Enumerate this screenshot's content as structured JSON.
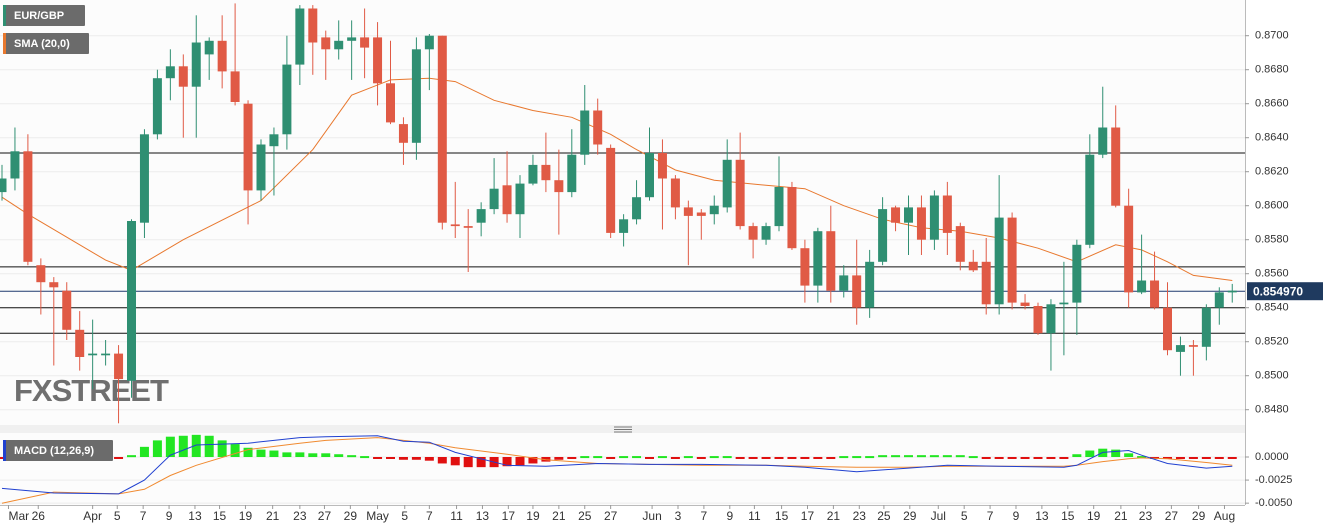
{
  "chart_data": [
    {
      "type": "candlestick",
      "symbol": "EUR/GBP",
      "up_color": "#2f8f72",
      "down_color": "#e05a45",
      "open": [
        0.8608,
        0.8616,
        0.8632,
        0.8565,
        0.8555,
        0.855,
        0.8527,
        0.8512,
        0.8512,
        0.8513,
        0.8497,
        0.859,
        0.8642,
        0.8675,
        0.8682,
        0.867,
        0.8689,
        0.8697,
        0.8679,
        0.866,
        0.8609,
        0.8635,
        0.8642,
        0.8683,
        0.8716,
        0.8699,
        0.8692,
        0.8697,
        0.8699,
        0.8699,
        0.8672,
        0.8648,
        0.8637,
        0.8692,
        0.87,
        0.8589,
        0.8588,
        0.859,
        0.8598,
        0.8612,
        0.8595,
        0.8613,
        0.8624,
        0.8615,
        0.8608,
        0.863,
        0.8656,
        0.8634,
        0.8584,
        0.8592,
        0.8605,
        0.8631,
        0.8616,
        0.8599,
        0.8596,
        0.8595,
        0.8599,
        0.8627,
        0.8588,
        0.858,
        0.8588,
        0.8611,
        0.8575,
        0.8553,
        0.8585,
        0.855,
        0.8559,
        0.854,
        0.8567,
        0.8599,
        0.859,
        0.8599,
        0.858,
        0.8606,
        0.8588,
        0.8567,
        0.8567,
        0.8542,
        0.8593,
        0.8543,
        0.8541,
        0.8525,
        0.8542,
        0.8543,
        0.8577,
        0.863,
        0.8646,
        0.86,
        0.8549,
        0.8556,
        0.854,
        0.8514,
        0.8518,
        0.8517,
        0.854,
        0.8549
      ],
      "high": [
        0.8624,
        0.8646,
        0.8642,
        0.8569,
        0.8558,
        0.8555,
        0.8538,
        0.8533,
        0.8521,
        0.8518,
        0.8592,
        0.8645,
        0.868,
        0.8692,
        0.8689,
        0.8712,
        0.8699,
        0.8712,
        0.8719,
        0.8662,
        0.8639,
        0.8646,
        0.87,
        0.8718,
        0.8718,
        0.8703,
        0.8709,
        0.8709,
        0.8716,
        0.8708,
        0.8697,
        0.8652,
        0.8699,
        0.8701,
        0.87,
        0.8614,
        0.8598,
        0.8602,
        0.8628,
        0.8632,
        0.8618,
        0.863,
        0.8643,
        0.8633,
        0.8645,
        0.8671,
        0.8663,
        0.8636,
        0.8595,
        0.8615,
        0.8646,
        0.8639,
        0.8618,
        0.8603,
        0.8598,
        0.8606,
        0.8639,
        0.8643,
        0.859,
        0.859,
        0.8629,
        0.8614,
        0.858,
        0.8587,
        0.86,
        0.8565,
        0.858,
        0.8574,
        0.8605,
        0.86,
        0.8606,
        0.8606,
        0.8609,
        0.8614,
        0.859,
        0.8574,
        0.8581,
        0.8618,
        0.8596,
        0.8548,
        0.8543,
        0.8545,
        0.8567,
        0.858,
        0.8642,
        0.867,
        0.8659,
        0.861,
        0.8583,
        0.8573,
        0.8555,
        0.8523,
        0.8521,
        0.8542,
        0.8552,
        0.8554
      ],
      "low": [
        0.8603,
        0.8609,
        0.8565,
        0.8536,
        0.8506,
        0.8521,
        0.8503,
        0.8492,
        0.8506,
        0.8472,
        0.8487,
        0.8581,
        0.8639,
        0.8662,
        0.864,
        0.864,
        0.8674,
        0.8669,
        0.8659,
        0.8589,
        0.8603,
        0.8606,
        0.8633,
        0.8671,
        0.8677,
        0.8674,
        0.8686,
        0.8674,
        0.8675,
        0.8659,
        0.8648,
        0.8624,
        0.8627,
        0.8668,
        0.8586,
        0.8581,
        0.8561,
        0.8582,
        0.8595,
        0.859,
        0.8581,
        0.8612,
        0.8608,
        0.8583,
        0.8605,
        0.8624,
        0.863,
        0.8581,
        0.8576,
        0.8589,
        0.8603,
        0.8586,
        0.8592,
        0.8565,
        0.858,
        0.8589,
        0.8596,
        0.8586,
        0.8569,
        0.8577,
        0.8585,
        0.8574,
        0.8543,
        0.8543,
        0.8543,
        0.8546,
        0.853,
        0.8534,
        0.8565,
        0.8585,
        0.8571,
        0.8571,
        0.8574,
        0.8571,
        0.8562,
        0.8561,
        0.8536,
        0.8536,
        0.8539,
        0.8539,
        0.8524,
        0.8503,
        0.8512,
        0.8524,
        0.8575,
        0.8628,
        0.8599,
        0.854,
        0.8548,
        0.8539,
        0.8512,
        0.85,
        0.85,
        0.8509,
        0.853,
        0.8543
      ],
      "close": [
        0.8616,
        0.8632,
        0.8567,
        0.8555,
        0.8552,
        0.8527,
        0.8511,
        0.8513,
        0.8513,
        0.8498,
        0.8591,
        0.8642,
        0.8675,
        0.8682,
        0.867,
        0.8696,
        0.8697,
        0.8679,
        0.8661,
        0.8609,
        0.8636,
        0.8642,
        0.8683,
        0.8716,
        0.8696,
        0.8692,
        0.8697,
        0.8699,
        0.8693,
        0.8672,
        0.8649,
        0.8637,
        0.8692,
        0.87,
        0.859,
        0.8588,
        0.8587,
        0.8598,
        0.861,
        0.8595,
        0.8613,
        0.8624,
        0.8615,
        0.8608,
        0.863,
        0.8656,
        0.8636,
        0.8584,
        0.8592,
        0.8605,
        0.8631,
        0.8616,
        0.8599,
        0.8594,
        0.8594,
        0.86,
        0.8627,
        0.8588,
        0.858,
        0.8588,
        0.8611,
        0.8575,
        0.8553,
        0.8585,
        0.855,
        0.8559,
        0.854,
        0.8567,
        0.8598,
        0.859,
        0.8599,
        0.858,
        0.8606,
        0.8584,
        0.8567,
        0.8562,
        0.8542,
        0.8593,
        0.8543,
        0.8541,
        0.8525,
        0.8542,
        0.8543,
        0.8577,
        0.863,
        0.8646,
        0.86,
        0.8549,
        0.8556,
        0.854,
        0.8515,
        0.8518,
        0.8517,
        0.854,
        0.8549,
        0.855
      ],
      "sma": {
        "name": "SMA (20,0)",
        "color": "#e8782e",
        "x": [
          0,
          2,
          8,
          10,
          14,
          20,
          24,
          27,
          30,
          33,
          35,
          38,
          41,
          44,
          47,
          49,
          52,
          55,
          59,
          62,
          65,
          68,
          71,
          74,
          77,
          80,
          83,
          86,
          88,
          90,
          92,
          95
        ],
        "values": [
          0.8605,
          0.8595,
          0.8568,
          0.8562,
          0.858,
          0.8603,
          0.8633,
          0.8665,
          0.8674,
          0.8675,
          0.8673,
          0.8662,
          0.8656,
          0.8652,
          0.8642,
          0.8633,
          0.8621,
          0.8615,
          0.8612,
          0.861,
          0.86,
          0.8592,
          0.8587,
          0.8585,
          0.8581,
          0.8575,
          0.8567,
          0.8577,
          0.8574,
          0.8567,
          0.8559,
          0.8556
        ]
      },
      "levels": [
        0.8631,
        0.8564,
        0.854,
        0.8525
      ],
      "last_price": {
        "value": 0.85497,
        "label": "0.854970"
      },
      "watermark": "FXSTREET",
      "ylim": [
        0.8471,
        0.8721
      ],
      "yticks": [
        {
          "value": 0.87,
          "label": "0.8700"
        },
        {
          "value": 0.868,
          "label": "0.8680"
        },
        {
          "value": 0.866,
          "label": "0.8660"
        },
        {
          "value": 0.864,
          "label": "0.8640"
        },
        {
          "value": 0.862,
          "label": "0.8620"
        },
        {
          "value": 0.86,
          "label": "0.8600"
        },
        {
          "value": 0.858,
          "label": "0.8580"
        },
        {
          "value": 0.856,
          "label": "0.8560"
        },
        {
          "value": 0.854,
          "label": "0.8540"
        },
        {
          "value": 0.852,
          "label": "0.8520"
        },
        {
          "value": 0.85,
          "label": "0.8500"
        },
        {
          "value": 0.848,
          "label": "0.8480"
        }
      ],
      "xticks": [
        {
          "value": 0.5,
          "label": "Mar"
        },
        {
          "value": 2.8,
          "label": "26"
        },
        {
          "value": 7,
          "label": "Apr"
        },
        {
          "value": 8.9,
          "label": "5"
        },
        {
          "value": 10.9,
          "label": "7"
        },
        {
          "value": 12.9,
          "label": "9"
        },
        {
          "value": 14.9,
          "label": "13"
        },
        {
          "value": 16.8,
          "label": "15"
        },
        {
          "value": 18.8,
          "label": "19"
        },
        {
          "value": 20.9,
          "label": "21"
        },
        {
          "value": 23,
          "label": "23"
        },
        {
          "value": 24.9,
          "label": "27"
        },
        {
          "value": 26.9,
          "label": "29"
        },
        {
          "value": 29,
          "label": "May"
        },
        {
          "value": 31.1,
          "label": "5"
        },
        {
          "value": 33,
          "label": "7"
        },
        {
          "value": 35.1,
          "label": "11"
        },
        {
          "value": 37.1,
          "label": "13"
        },
        {
          "value": 39.1,
          "label": "17"
        },
        {
          "value": 41,
          "label": "19"
        },
        {
          "value": 43,
          "label": "21"
        },
        {
          "value": 45,
          "label": "25"
        },
        {
          "value": 47,
          "label": "27"
        },
        {
          "value": 50.2,
          "label": "Jun"
        },
        {
          "value": 52.2,
          "label": "3"
        },
        {
          "value": 54.2,
          "label": "7"
        },
        {
          "value": 56.2,
          "label": "9"
        },
        {
          "value": 58.1,
          "label": "11"
        },
        {
          "value": 60.2,
          "label": "15"
        },
        {
          "value": 62.2,
          "label": "17"
        },
        {
          "value": 64.2,
          "label": "21"
        },
        {
          "value": 66.2,
          "label": "23"
        },
        {
          "value": 68.1,
          "label": "25"
        },
        {
          "value": 70.1,
          "label": "29"
        },
        {
          "value": 72.3,
          "label": "Jul"
        },
        {
          "value": 74.3,
          "label": "5"
        },
        {
          "value": 76.3,
          "label": "7"
        },
        {
          "value": 78.3,
          "label": "9"
        },
        {
          "value": 80.3,
          "label": "13"
        },
        {
          "value": 82.3,
          "label": "15"
        },
        {
          "value": 84.3,
          "label": "19"
        },
        {
          "value": 86.4,
          "label": "21"
        },
        {
          "value": 88.3,
          "label": "23"
        },
        {
          "value": 90.3,
          "label": "27"
        },
        {
          "value": 92.4,
          "label": "29"
        },
        {
          "value": 94.4,
          "label": "Aug"
        }
      ],
      "grid": true
    },
    {
      "type": "macd",
      "name": "MACD (12,26,9)",
      "up_color": "#22e622",
      "down_color": "#e01010",
      "histogram": [
        -0.0002,
        -0.0002,
        -0.0002,
        -0.0002,
        -0.0002,
        -0.0002,
        -0.0002,
        -0.0002,
        -0.0002,
        -0.0001,
        0.0002,
        0.0011,
        0.0018,
        0.0022,
        0.0023,
        0.0024,
        0.0023,
        0.0018,
        0.0014,
        0.001,
        0.0008,
        0.0007,
        0.0005,
        0.0005,
        0.0004,
        0.0004,
        0.0003,
        0.0002,
        0.0001,
        -0.0001,
        -0.0002,
        -0.0003,
        -0.0003,
        -0.0004,
        -0.0007,
        -0.0009,
        -0.0011,
        -0.0011,
        -0.0011,
        -0.001,
        -0.0009,
        -0.0007,
        -0.0005,
        -0.0003,
        -0.0002,
        0.0001,
        0.0001,
        -0.0001,
        0.0001,
        0.0001,
        -0.0001,
        0.0001,
        -0.0001,
        0.0001,
        -0.0001,
        0.0001,
        0.0001,
        -0.0001,
        -0.0001,
        -0.0002,
        -0.0002,
        -0.0002,
        -0.0002,
        -0.0001,
        -0.0001,
        0.0001,
        0.0001,
        0.0001,
        0.0002,
        0.0002,
        0.0002,
        0.0002,
        0.0002,
        0.0002,
        0.0002,
        0.0001,
        -0.0002,
        -0.0002,
        -0.0002,
        -0.0002,
        -0.0002,
        -0.0002,
        -0.0001,
        0.0003,
        0.0007,
        0.0009,
        0.0008,
        0.0004,
        0.0001,
        -0.0002,
        -0.0002,
        -0.0002,
        -0.0002,
        -0.0002,
        -0.0002,
        -0.0002
      ],
      "macd": {
        "color": "#2040d0",
        "x": [
          0,
          4,
          9,
          11,
          13,
          15,
          19,
          23,
          25,
          29,
          31,
          33,
          35,
          39,
          42,
          46,
          50,
          54,
          59,
          62,
          66,
          70,
          73,
          77,
          82,
          83,
          85,
          87,
          88,
          90,
          93,
          95
        ],
        "values": [
          -0.0034,
          -0.0039,
          -0.004,
          -0.0025,
          0.0002,
          0.0013,
          0.0015,
          0.0021,
          0.0022,
          0.0023,
          0.0017,
          0.0016,
          0.0005,
          -0.0009,
          -0.001,
          -0.0007,
          -0.0008,
          -0.0008,
          -0.0009,
          -0.0011,
          -0.0016,
          -0.0012,
          -0.0009,
          -0.001,
          -0.0011,
          -0.0009,
          0.0005,
          0.0007,
          0.0002,
          -0.0007,
          -0.0012,
          -0.001
        ]
      },
      "signal": {
        "color": "#f08a30",
        "x": [
          0,
          4,
          9,
          11,
          13,
          15,
          19,
          23,
          25,
          29,
          31,
          33,
          35,
          39,
          42,
          46,
          50,
          54,
          59,
          62,
          66,
          70,
          73,
          77,
          82,
          83,
          85,
          87,
          88,
          90,
          93,
          95
        ],
        "values": [
          -0.005,
          -0.0038,
          -0.004,
          -0.0035,
          -0.002,
          -0.0009,
          0.0008,
          0.0015,
          0.0018,
          0.0021,
          0.0018,
          0.0015,
          0.001,
          0.0003,
          -0.0003,
          -0.0007,
          -0.0008,
          -0.0009,
          -0.0009,
          -0.001,
          -0.0011,
          -0.0011,
          -0.001,
          -0.001,
          -0.001,
          -0.0009,
          -0.0005,
          -0.0002,
          -0.0001,
          -0.0002,
          -0.0006,
          -0.0009
        ]
      },
      "ylim": [
        -0.0052,
        0.0026
      ],
      "yticks": [
        {
          "value": 0,
          "label": "0.0000"
        },
        {
          "value": -0.0025,
          "label": "-0.0025"
        },
        {
          "value": -0.005,
          "label": "-0.0050"
        }
      ]
    }
  ]
}
